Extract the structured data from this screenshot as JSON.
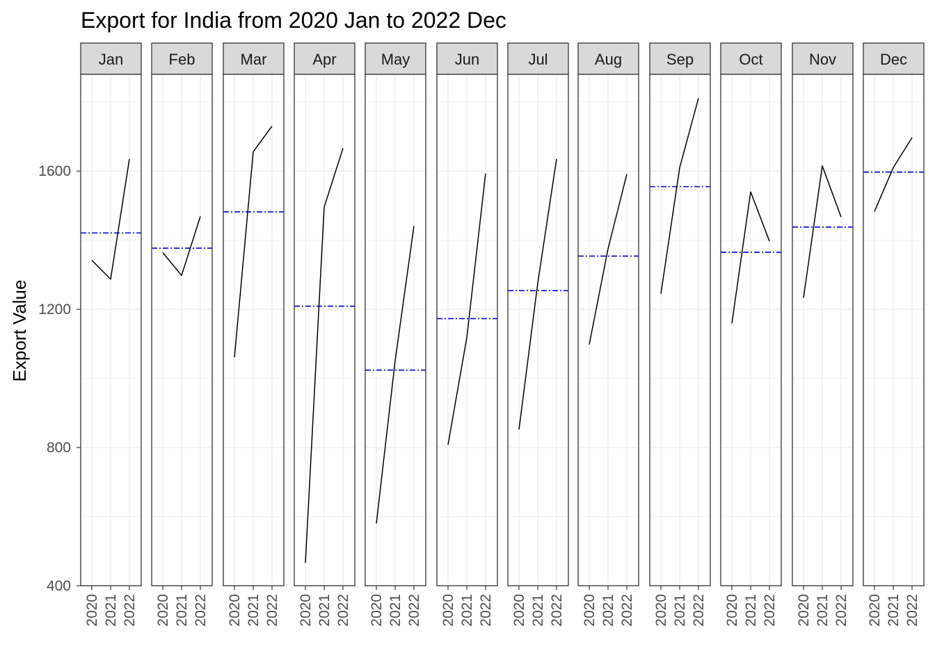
{
  "chart_data": {
    "type": "line",
    "title": "Export for India from 2020 Jan to 2022 Dec",
    "xlabel": "",
    "ylabel": "Export Value",
    "facet_by": "month",
    "years": [
      "2020",
      "2021",
      "2022"
    ],
    "ylim": [
      400,
      1880
    ],
    "y_ticks": [
      400,
      800,
      1200,
      1600
    ],
    "grid": true,
    "line_color": "#000000",
    "mean_line_color": "#0000cd",
    "mean_line_style": "dashdot",
    "panels": [
      {
        "label": "Jan",
        "values": [
          1342,
          1287,
          1635
        ],
        "mean": 1421
      },
      {
        "label": "Feb",
        "values": [
          1364,
          1298,
          1469
        ],
        "mean": 1377
      },
      {
        "label": "Mar",
        "values": [
          1061,
          1656,
          1730
        ],
        "mean": 1482
      },
      {
        "label": "Apr",
        "values": [
          466,
          1496,
          1666
        ],
        "mean": 1209
      },
      {
        "label": "May",
        "values": [
          580,
          1051,
          1441
        ],
        "mean": 1024
      },
      {
        "label": "Jun",
        "values": [
          808,
          1118,
          1593
        ],
        "mean": 1173
      },
      {
        "label": "Jul",
        "values": [
          852,
          1276,
          1635
        ],
        "mean": 1254
      },
      {
        "label": "Aug",
        "values": [
          1098,
          1375,
          1591
        ],
        "mean": 1354
      },
      {
        "label": "Sep",
        "values": [
          1245,
          1610,
          1811
        ],
        "mean": 1555
      },
      {
        "label": "Oct",
        "values": [
          1159,
          1540,
          1397
        ],
        "mean": 1365
      },
      {
        "label": "Nov",
        "values": [
          1233,
          1615,
          1467
        ],
        "mean": 1438
      },
      {
        "label": "Dec",
        "values": [
          1483,
          1610,
          1697
        ],
        "mean": 1597
      }
    ]
  }
}
